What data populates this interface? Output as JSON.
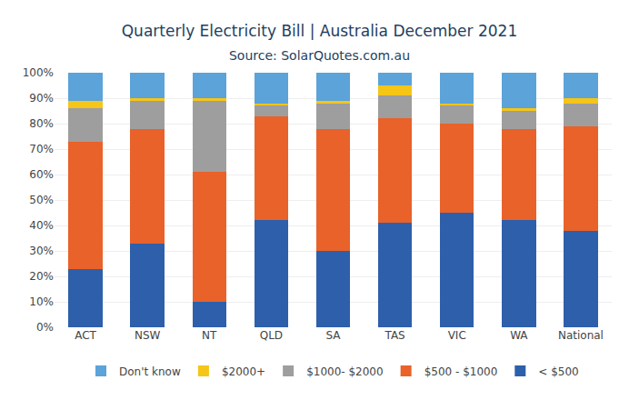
{
  "chart_data": {
    "type": "bar",
    "stacked": true,
    "title": "Quarterly Electricity Bill | Australia December 2021",
    "subtitle": "Source: SolarQuotes.com.au",
    "categories": [
      "ACT",
      "NSW",
      "NT",
      "QLD",
      "SA",
      "TAS",
      "VIC",
      "WA",
      "National"
    ],
    "series": [
      {
        "name": "< $500",
        "color": "#2e5faa",
        "values": [
          23,
          33,
          10,
          42,
          30,
          41,
          45,
          42,
          38
        ]
      },
      {
        "name": "$500 - $1000",
        "color": "#e8622a",
        "values": [
          50,
          45,
          51,
          41,
          48,
          41,
          35,
          36,
          41
        ]
      },
      {
        "name": "$1000- $2000",
        "color": "#9e9e9e",
        "values": [
          13,
          11,
          28,
          4,
          10,
          9,
          7,
          7,
          9
        ]
      },
      {
        "name": "$2000+",
        "color": "#f5c518",
        "values": [
          3,
          1,
          1,
          1,
          1,
          4,
          1,
          1,
          2
        ]
      },
      {
        "name": "Don't know",
        "color": "#5ba3d9",
        "values": [
          11,
          10,
          10,
          12,
          11,
          5,
          12,
          14,
          10
        ]
      }
    ],
    "ylim": [
      0,
      100
    ],
    "yticks": [
      {
        "value": 0,
        "label": "0%"
      },
      {
        "value": 10,
        "label": "10%"
      },
      {
        "value": 20,
        "label": "20%"
      },
      {
        "value": 30,
        "label": "30%"
      },
      {
        "value": 40,
        "label": "40%"
      },
      {
        "value": 50,
        "label": "50%"
      },
      {
        "value": 60,
        "label": "60%"
      },
      {
        "value": 70,
        "label": "70%"
      },
      {
        "value": 80,
        "label": "80%"
      },
      {
        "value": 90,
        "label": "90%"
      },
      {
        "value": 100,
        "label": "100%"
      }
    ],
    "grid": true,
    "legend": "bottom"
  }
}
